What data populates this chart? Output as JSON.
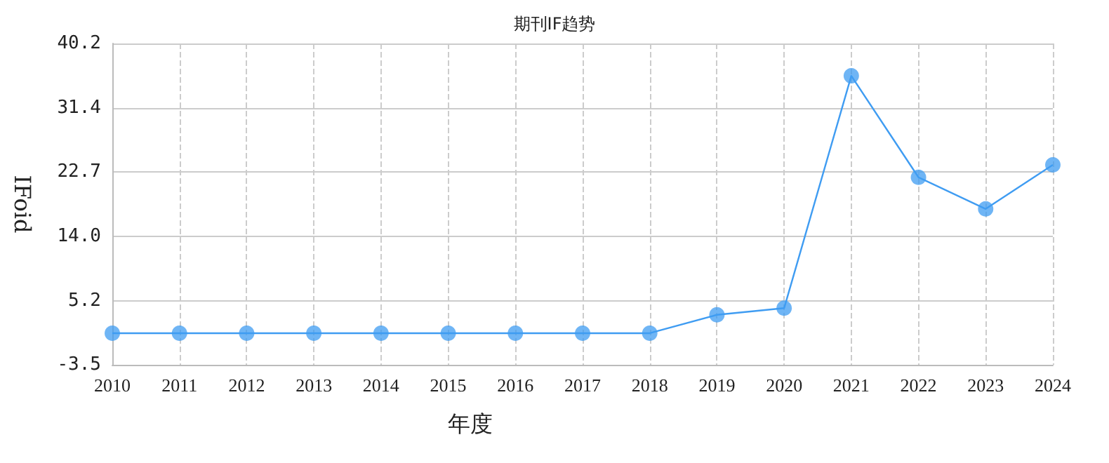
{
  "chart_data": {
    "type": "line",
    "title": "期刊IF趋势",
    "xlabel": "年度",
    "ylabel": "IFoid",
    "categories": [
      "2010",
      "2011",
      "2012",
      "2013",
      "2014",
      "2015",
      "2016",
      "2017",
      "2018",
      "2019",
      "2020",
      "2021",
      "2022",
      "2023",
      "2024"
    ],
    "series": [
      {
        "color": "#3f9cf2",
        "values": [
          0.8,
          0.8,
          0.8,
          0.8,
          0.8,
          0.8,
          0.8,
          0.8,
          0.8,
          3.3,
          4.2,
          35.8,
          22.0,
          17.7,
          23.7
        ]
      }
    ],
    "ylim": [
      -3.5,
      40.2
    ],
    "yticks": [
      -3.5,
      5.2,
      {
        "value": 14,
        "label": "14.0"
      },
      22.7,
      31.4,
      40.2
    ],
    "grid": true,
    "marker": "circle",
    "line_style": "solid"
  }
}
